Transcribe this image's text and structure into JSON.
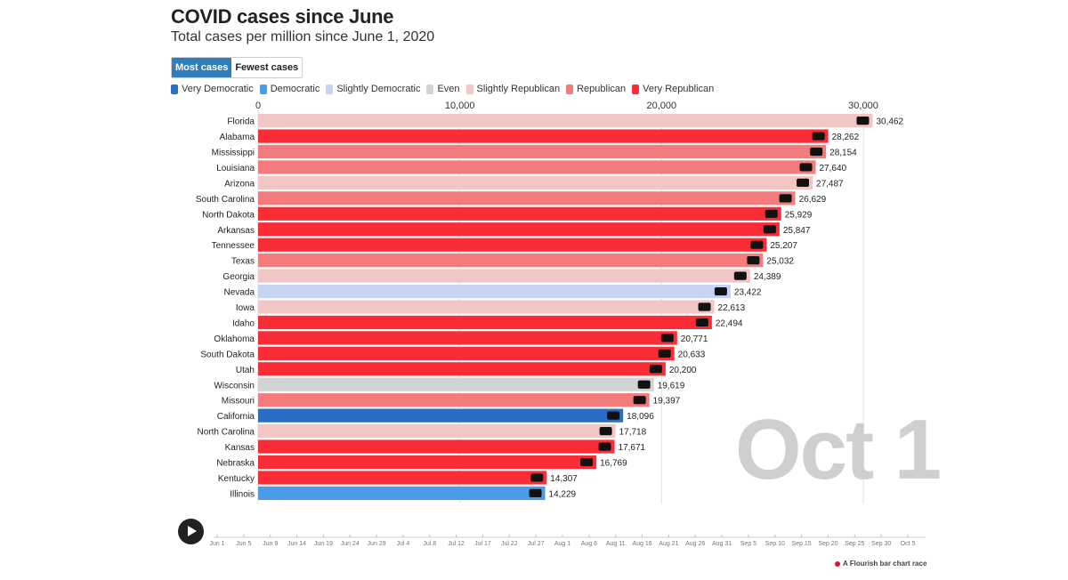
{
  "header": {
    "title": "COVID cases since June",
    "subtitle": "Total cases per million since June 1, 2020"
  },
  "toggle": {
    "most_label": "Most cases",
    "fewest_label": "Fewest cases"
  },
  "legend": [
    {
      "label": "Very Democratic",
      "color": "#2b6dc4"
    },
    {
      "label": "Democratic",
      "color": "#4a9bea"
    },
    {
      "label": "Slightly Democratic",
      "color": "#c6d4f1"
    },
    {
      "label": "Even",
      "color": "#d3d3d3"
    },
    {
      "label": "Slightly Republican",
      "color": "#f3c6c6"
    },
    {
      "label": "Republican",
      "color": "#f47b7b"
    },
    {
      "label": "Very Republican",
      "color": "#fa2d37"
    }
  ],
  "date_label": "Oct 1",
  "chart_data": {
    "type": "bar",
    "orientation": "horizontal",
    "title": "COVID cases since June",
    "subtitle": "Total cases per million since June 1, 2020",
    "xlim": [
      0,
      30462
    ],
    "ticks": [
      0,
      10000,
      20000,
      30000
    ],
    "tick_labels": [
      "0",
      "10,000",
      "20,000",
      "30,000"
    ],
    "categories": [
      "Florida",
      "Alabama",
      "Mississippi",
      "Louisiana",
      "Arizona",
      "South Carolina",
      "North Dakota",
      "Arkansas",
      "Tennessee",
      "Texas",
      "Georgia",
      "Nevada",
      "Iowa",
      "Idaho",
      "Oklahoma",
      "South Dakota",
      "Utah",
      "Wisconsin",
      "Missouri",
      "California",
      "North Carolina",
      "Kansas",
      "Nebraska",
      "Kentucky",
      "Illinois"
    ],
    "values": [
      30462,
      28262,
      28154,
      27640,
      27487,
      26629,
      25929,
      25847,
      25207,
      25032,
      24389,
      23422,
      22613,
      22494,
      20771,
      20633,
      20200,
      19619,
      19397,
      18096,
      17718,
      17671,
      16769,
      14307,
      14229
    ],
    "value_labels": [
      "30,462",
      "28,262",
      "28,154",
      "27,640",
      "27,487",
      "26,629",
      "25,929",
      "25,847",
      "25,207",
      "25,032",
      "24,389",
      "23,422",
      "22,613",
      "22,494",
      "20,771",
      "20,633",
      "20,200",
      "19,619",
      "19,397",
      "18,096",
      "17,718",
      "17,671",
      "16,769",
      "14,307",
      "14,229"
    ],
    "groups": [
      "Slightly Republican",
      "Very Republican",
      "Republican",
      "Republican",
      "Slightly Republican",
      "Republican",
      "Very Republican",
      "Very Republican",
      "Very Republican",
      "Republican",
      "Slightly Republican",
      "Slightly Democratic",
      "Slightly Republican",
      "Very Republican",
      "Very Republican",
      "Very Republican",
      "Very Republican",
      "Even",
      "Republican",
      "Very Democratic",
      "Slightly Republican",
      "Very Republican",
      "Very Republican",
      "Very Republican",
      "Democratic"
    ]
  },
  "timeline": {
    "labels": [
      "Jun 1",
      "Jun 5",
      "Jun 9",
      "Jun 14",
      "Jun 19",
      "Jun 24",
      "Jun 29",
      "Jul 4",
      "Jul 8",
      "Jul 12",
      "Jul 17",
      "Jul 22",
      "Jul 27",
      "Aug 1",
      "Aug 6",
      "Aug 11",
      "Aug 16",
      "Aug 21",
      "Aug 26",
      "Aug 31",
      "Sep 5",
      "Sep 10",
      "Sep 15",
      "Sep 20",
      "Sep 25",
      "Sep 30",
      "Oct 5"
    ]
  },
  "credit": "A Flourish bar chart race"
}
